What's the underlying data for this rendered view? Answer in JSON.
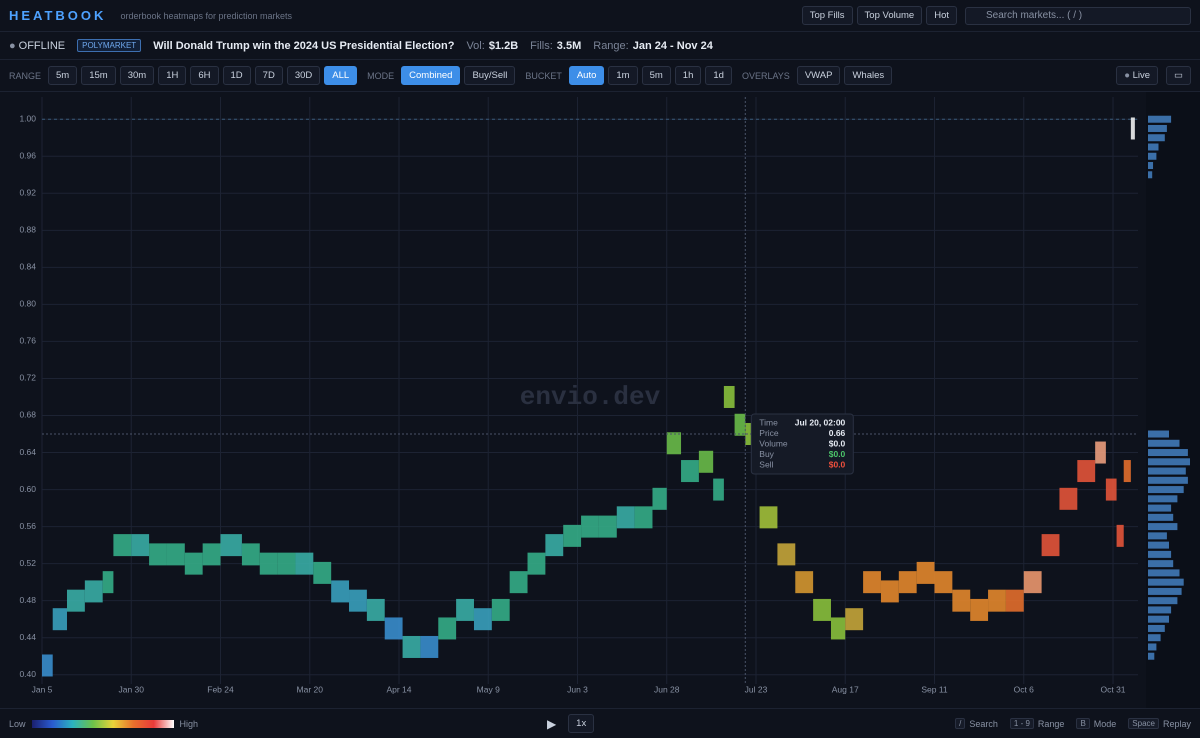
{
  "header": {
    "logo": "HEATBOOK",
    "tagline": "orderbook heatmaps for prediction markets",
    "buttons": [
      "Top Fills",
      "Top Volume",
      "Hot"
    ],
    "search_placeholder": "Search markets... ( / )"
  },
  "market": {
    "status": "OFFLINE",
    "source": "POLYMARKET",
    "question": "Will Donald Trump win the 2024 US Presidential Election?",
    "vol_label": "Vol:",
    "vol": "$1.2B",
    "fills_label": "Fills:",
    "fills": "3.5M",
    "range_label": "Range:",
    "range": "Jan 24 - Nov 24"
  },
  "controls": [
    {
      "label": "RANGE",
      "options": [
        "5m",
        "15m",
        "30m",
        "1H",
        "6H",
        "1D",
        "7D",
        "30D",
        "ALL"
      ],
      "active": 8
    },
    {
      "label": "MODE",
      "options": [
        "Combined",
        "Buy/Sell"
      ],
      "active": 0
    },
    {
      "label": "BUCKET",
      "options": [
        "Auto",
        "1m",
        "5m",
        "1h",
        "1d"
      ],
      "active": 0
    },
    {
      "label": "OVERLAYS",
      "options": [
        "VWAP",
        "Whales"
      ]
    }
  ],
  "live": "Live",
  "chart_data": {
    "type": "heatmap",
    "watermark": "envio.dev",
    "x": [
      "Jan 5",
      "Jan 8",
      "Jan 12",
      "Jan 17",
      "Jan 22",
      "Jan 25",
      "Jan 30",
      "Feb 4",
      "Feb 9",
      "Feb 14",
      "Feb 19",
      "Feb 24",
      "Mar 1",
      "Mar 6",
      "Mar 11",
      "Mar 16",
      "Mar 21",
      "Mar 26",
      "Mar 31",
      "Apr 5",
      "Apr 10",
      "Apr 15",
      "Apr 20",
      "Apr 25",
      "Apr 30",
      "May 5",
      "May 10",
      "May 15",
      "May 20",
      "May 25",
      "May 30",
      "Jun 4",
      "Jun 9",
      "Jun 14",
      "Jun 19",
      "Jun 24",
      "Jun 28",
      "Jul 2",
      "Jul 7",
      "Jul 11",
      "Jul 14",
      "Jul 17",
      "Jul 20",
      "Jul 24",
      "Jul 29",
      "Aug 3",
      "Aug 8",
      "Aug 13",
      "Aug 17",
      "Aug 22",
      "Aug 27",
      "Sep 1",
      "Sep 6",
      "Sep 11",
      "Sep 16",
      "Sep 21",
      "Sep 26",
      "Oct 1",
      "Oct 6",
      "Oct 11",
      "Oct 16",
      "Oct 21",
      "Oct 26",
      "Oct 29",
      "Nov 1",
      "Nov 3",
      "Nov 5"
    ],
    "values": [
      0.41,
      0.46,
      0.48,
      0.49,
      0.5,
      0.54,
      0.54,
      0.53,
      0.53,
      0.52,
      0.53,
      0.54,
      0.53,
      0.52,
      0.52,
      0.52,
      0.51,
      0.49,
      0.48,
      0.47,
      0.45,
      0.43,
      0.43,
      0.45,
      0.47,
      0.46,
      0.47,
      0.5,
      0.52,
      0.54,
      0.55,
      0.56,
      0.56,
      0.57,
      0.57,
      0.59,
      0.65,
      0.62,
      0.63,
      0.6,
      0.7,
      0.67,
      0.66,
      0.57,
      0.53,
      0.5,
      0.47,
      0.45,
      0.46,
      0.5,
      0.49,
      0.5,
      0.51,
      0.5,
      0.48,
      0.47,
      0.48,
      0.48,
      0.5,
      0.54,
      0.59,
      0.62,
      0.64,
      0.6,
      0.55,
      0.62,
      0.99
    ],
    "colors": [
      "#3a8fd0",
      "#3aa3c0",
      "#3ab0a8",
      "#3ab0a8",
      "#35b08a",
      "#35b08a",
      "#3ab0a8",
      "#35b08a",
      "#35b08a",
      "#35b08a",
      "#35b08a",
      "#3ab0a8",
      "#35b08a",
      "#35b08a",
      "#35b08a",
      "#3ab0a8",
      "#35b08a",
      "#3aa3c0",
      "#3aa3c0",
      "#3ab0a8",
      "#3a8fd0",
      "#3ab0a8",
      "#3a8fd0",
      "#35b08a",
      "#3ab0a8",
      "#3aa3c0",
      "#35b08a",
      "#35b08a",
      "#35b08a",
      "#3ab0a8",
      "#35b08a",
      "#35b08a",
      "#35b08a",
      "#3ab0a8",
      "#35b08a",
      "#35b08a",
      "#6cbf4a",
      "#35b08a",
      "#6cbf4a",
      "#35b08a",
      "#8cc43c",
      "#6cbf4a",
      "#8cc43c",
      "#a5c43a",
      "#c9a83a",
      "#d99a30",
      "#8cc43c",
      "#8cc43c",
      "#c9a83a",
      "#e88a2c",
      "#e88a2c",
      "#e88a2c",
      "#e88a2c",
      "#e88a2c",
      "#e88a2c",
      "#e88a2c",
      "#e88a2c",
      "#e8702c",
      "#f09a70",
      "#e8553a",
      "#e8553a",
      "#e8553a",
      "#f0a080",
      "#e8553a",
      "#e8553a",
      "#e8702c",
      "#f5f5f5"
    ],
    "xlim": [
      "Jan 5",
      "Nov 7"
    ],
    "xticks": [
      "Jan 5",
      "Jan 30",
      "Feb 24",
      "Mar 20",
      "Apr 14",
      "May 9",
      "Jun 3",
      "Jun 28",
      "Jul 23",
      "Aug 17",
      "Sep 11",
      "Oct 6",
      "Oct 31"
    ],
    "ylim": [
      0.39,
      1.024
    ],
    "yticks": [
      {
        "value": 0.4,
        "label": "0.40"
      },
      0.44,
      0.48,
      0.52,
      0.56,
      {
        "value": 0.6,
        "label": "0.60"
      },
      0.64,
      0.68,
      0.72,
      0.76,
      {
        "value": 0.8,
        "label": "0.80"
      },
      0.84,
      0.88,
      0.92,
      0.96,
      {
        "value": 1,
        "label": "1.00"
      }
    ],
    "grid": true,
    "reference_line": 1,
    "depth": {
      "prices": [
        1.0,
        0.99,
        0.98,
        0.97,
        0.96,
        0.95,
        0.94,
        0.66,
        0.65,
        0.64,
        0.63,
        0.62,
        0.61,
        0.6,
        0.59,
        0.58,
        0.57,
        0.56,
        0.55,
        0.54,
        0.53,
        0.52,
        0.51,
        0.5,
        0.49,
        0.48,
        0.47,
        0.46,
        0.45,
        0.44,
        0.43,
        0.42
      ],
      "values": [
        0.55,
        0.45,
        0.4,
        0.25,
        0.2,
        0.12,
        0.1,
        0.5,
        0.75,
        0.95,
        1.0,
        0.9,
        0.95,
        0.85,
        0.7,
        0.55,
        0.6,
        0.7,
        0.45,
        0.5,
        0.55,
        0.6,
        0.75,
        0.85,
        0.8,
        0.7,
        0.55,
        0.5,
        0.4,
        0.3,
        0.2,
        0.15
      ],
      "color": "#3b6fa8"
    },
    "tooltip": {
      "time_label": "Time",
      "time": "Jul 20, 02:00",
      "price_label": "Price",
      "price": 0.66,
      "volume_label": "Volume",
      "volume": "$0.0",
      "buy_label": "Buy",
      "buy": "$0.0",
      "sell_label": "Sell",
      "sell": "$0.0"
    }
  },
  "footer": {
    "low": "Low",
    "high": "High",
    "speed": "1x",
    "shortcuts": [
      [
        "/",
        "Search"
      ],
      [
        "1 - 9",
        "Range"
      ],
      [
        "B",
        "Mode"
      ],
      [
        "Space",
        "Replay"
      ]
    ]
  }
}
